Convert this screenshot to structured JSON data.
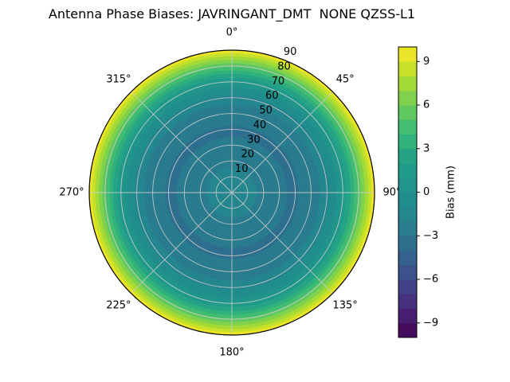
{
  "title": "Antenna Phase Biases: JAVRINGANT_DMT  NONE QZSS-L1",
  "chart_data": {
    "type": "polar_contour",
    "title": "Antenna Phase Biases: JAVRINGANT_DMT  NONE QZSS-L1",
    "description": "Filled polar contour of antenna phase bias vs zenith angle (radius 0-90 deg) and azimuth; pattern is azimuthally symmetric (concentric rings).",
    "azimuthally_symmetric": true,
    "r_max": 90,
    "rlabel_angle_deg": 22.5,
    "theta_ticks": [
      {
        "angle_deg": 0,
        "label": "0°"
      },
      {
        "angle_deg": 45,
        "label": "45°"
      },
      {
        "angle_deg": 90,
        "label": "90°"
      },
      {
        "angle_deg": 135,
        "label": "135°"
      },
      {
        "angle_deg": 180,
        "label": "180°"
      },
      {
        "angle_deg": 225,
        "label": "225°"
      },
      {
        "angle_deg": 270,
        "label": "270°"
      },
      {
        "angle_deg": 315,
        "label": "315°"
      }
    ],
    "radial_ticks": [
      {
        "value": 10,
        "label": "10"
      },
      {
        "value": 20,
        "label": "20"
      },
      {
        "value": 30,
        "label": "30"
      },
      {
        "value": 40,
        "label": "40"
      },
      {
        "value": 50,
        "label": "50"
      },
      {
        "value": 60,
        "label": "60"
      },
      {
        "value": 70,
        "label": "70"
      },
      {
        "value": 80,
        "label": "80"
      },
      {
        "value": 90,
        "label": "90"
      }
    ],
    "profile": {
      "zenith_deg": [
        0,
        10,
        20,
        30,
        40,
        50,
        55,
        60,
        65,
        70,
        75,
        80,
        85,
        90
      ],
      "bias_mm": [
        -1.0,
        -1.6,
        -2.3,
        -2.9,
        -3.1,
        -2.6,
        -2.1,
        -1.3,
        -0.3,
        1.2,
        3.0,
        5.2,
        7.4,
        9.8
      ]
    },
    "contour_step_mm": 1,
    "colorbar": {
      "label": "Bias (mm)",
      "vmin": -10,
      "vmax": 10,
      "colormap": "viridis",
      "ticks": [
        {
          "value": 9,
          "label": "9"
        },
        {
          "value": 6,
          "label": "6"
        },
        {
          "value": 3,
          "label": "3"
        },
        {
          "value": 0,
          "label": "0"
        },
        {
          "value": -3,
          "label": "−3"
        },
        {
          "value": -6,
          "label": "−6"
        },
        {
          "value": -9,
          "label": "−9"
        }
      ]
    },
    "colormap_stops": [
      {
        "t": 0.0,
        "color": "#440154"
      },
      {
        "t": 0.1,
        "color": "#482878"
      },
      {
        "t": 0.2,
        "color": "#3e4a89"
      },
      {
        "t": 0.3,
        "color": "#31688e"
      },
      {
        "t": 0.4,
        "color": "#26828e"
      },
      {
        "t": 0.5,
        "color": "#21918c"
      },
      {
        "t": 0.6,
        "color": "#1f9e89"
      },
      {
        "t": 0.7,
        "color": "#35b779"
      },
      {
        "t": 0.8,
        "color": "#6ece58"
      },
      {
        "t": 0.9,
        "color": "#b5de2b"
      },
      {
        "t": 1.0,
        "color": "#fde725"
      }
    ],
    "grid_color": "#cccccc",
    "spine_color": "#000000",
    "background": "#ffffff"
  }
}
